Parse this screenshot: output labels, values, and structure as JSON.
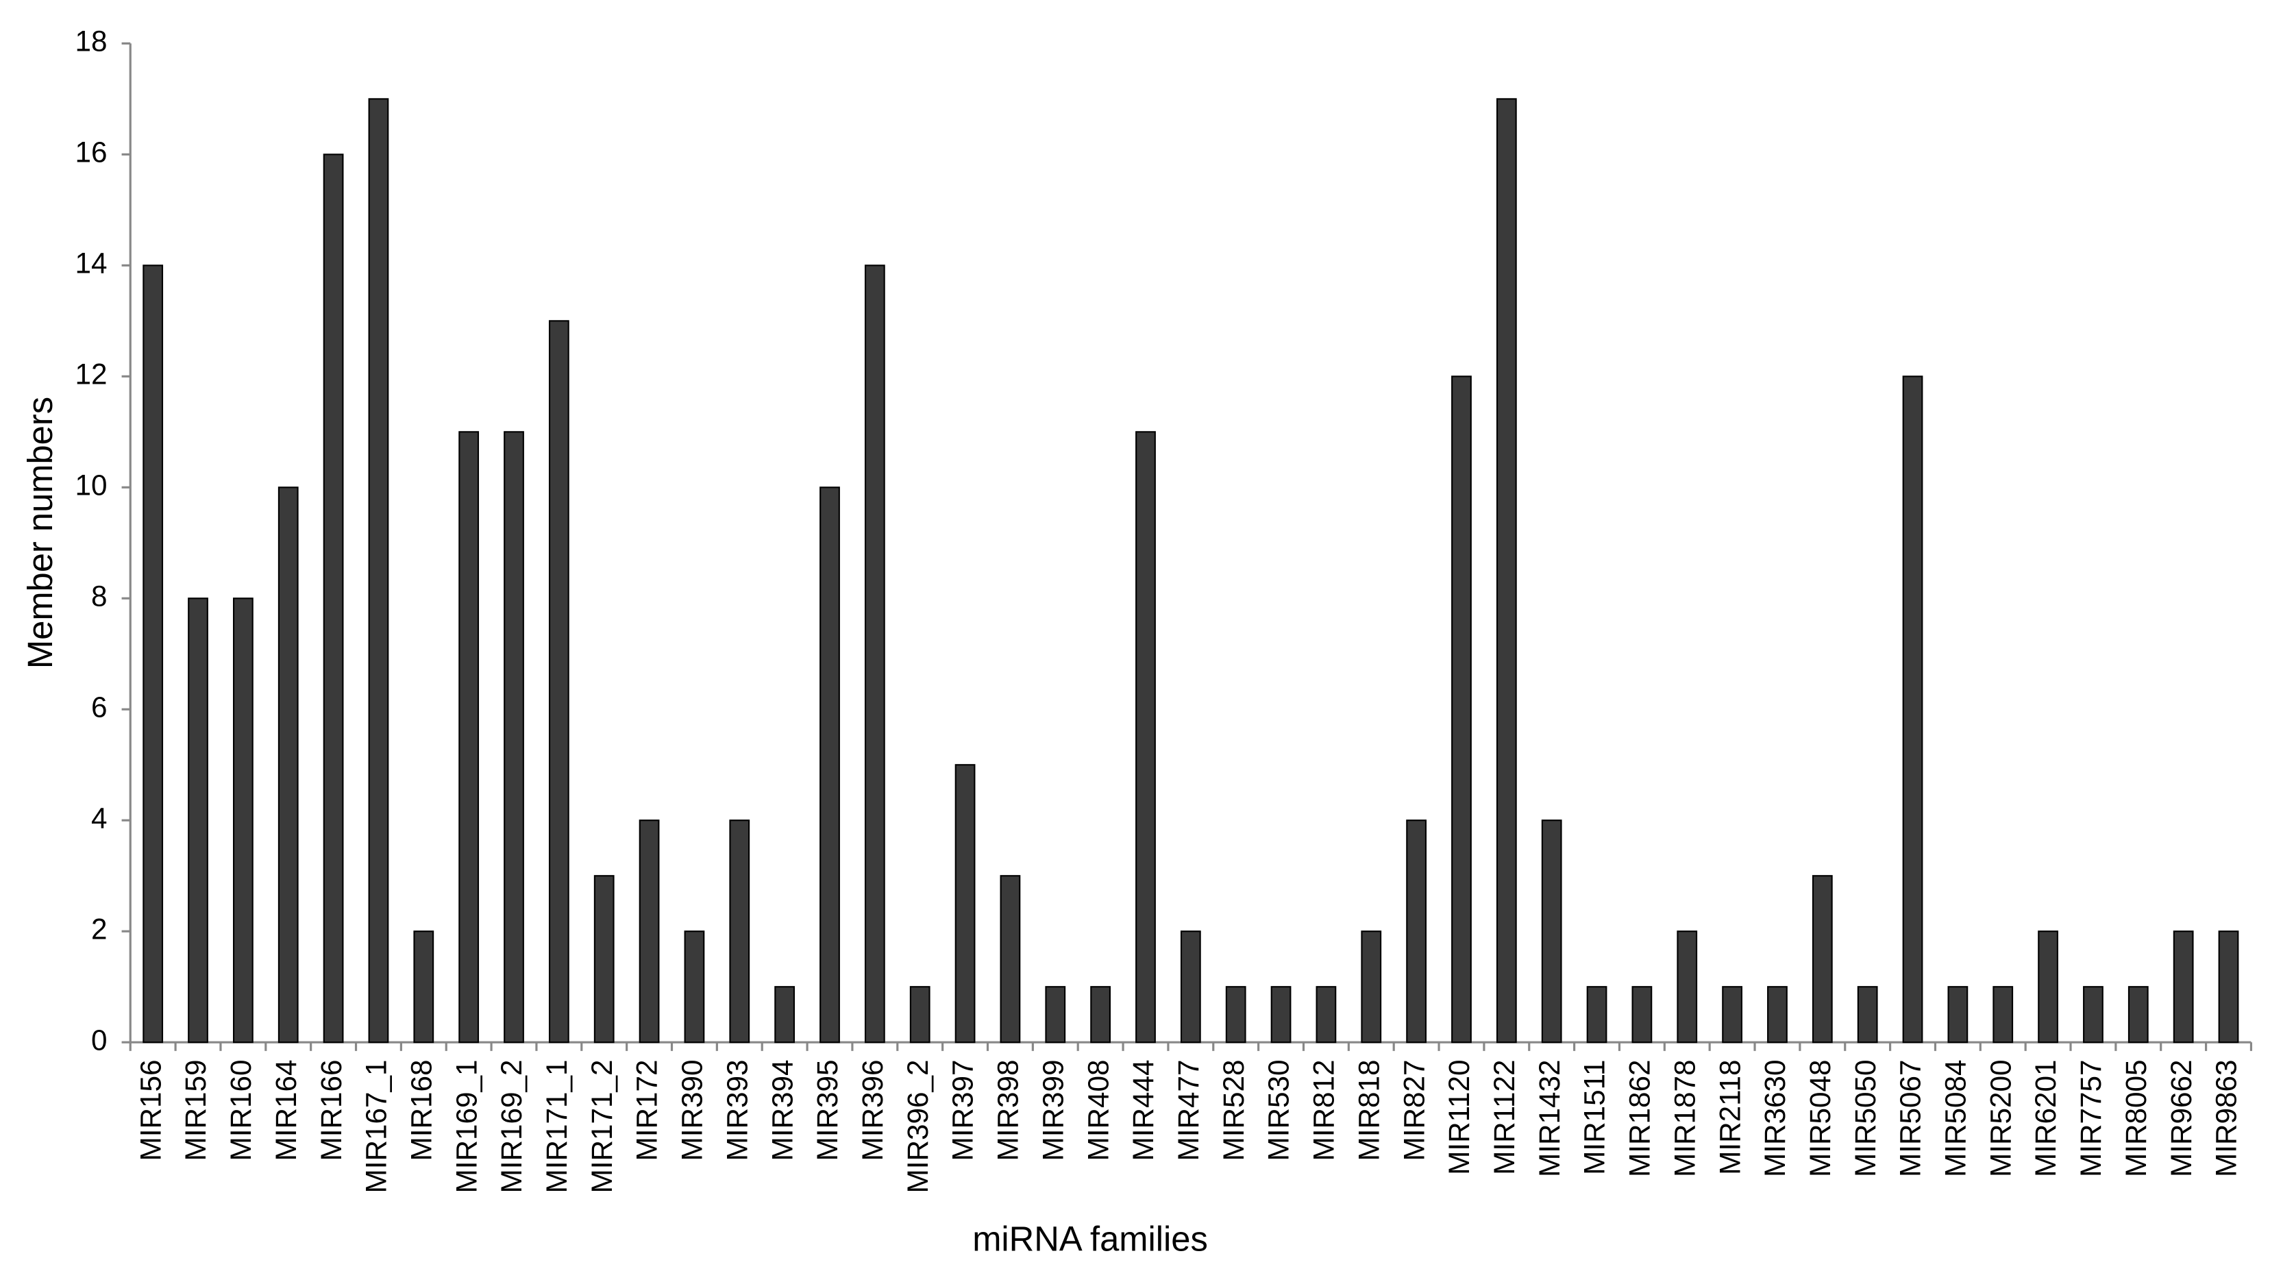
{
  "chart_data": {
    "type": "bar",
    "x_label": "miRNA families",
    "y_label": "Member numbers",
    "categories": [
      "MIR156",
      "MIR159",
      "MIR160",
      "MIR164",
      "MIR166",
      "MIR167_1",
      "MIR168",
      "MIR169_1",
      "MIR169_2",
      "MIR171_1",
      "MIR171_2",
      "MIR172",
      "MIR390",
      "MIR393",
      "MIR394",
      "MIR395",
      "MIR396",
      "MIR396_2",
      "MIR397",
      "MIR398",
      "MIR399",
      "MIR408",
      "MIR444",
      "MIR477",
      "MIR528",
      "MIR530",
      "MIR812",
      "MIR818",
      "MIR827",
      "MIR1120",
      "MIR1122",
      "MIR1432",
      "MIR1511",
      "MIR1862",
      "MIR1878",
      "MIR2118",
      "MIR3630",
      "MIR5048",
      "MIR5050",
      "MIR5067",
      "MIR5084",
      "MIR5200",
      "MIR6201",
      "MIR7757",
      "MIR8005",
      "MIR9662",
      "MIR9863"
    ],
    "values": [
      14,
      8,
      8,
      10,
      16,
      17,
      2,
      11,
      11,
      13,
      3,
      4,
      2,
      4,
      1,
      10,
      14,
      1,
      5,
      3,
      1,
      1,
      11,
      2,
      1,
      1,
      1,
      2,
      4,
      12,
      17,
      4,
      1,
      1,
      2,
      1,
      1,
      3,
      1,
      12,
      1,
      1,
      2,
      1,
      1,
      2,
      2
    ],
    "color": "#3a3a3a",
    "ylim": [
      0,
      18
    ],
    "yticks": [
      0,
      2,
      4,
      6,
      8,
      10,
      12,
      14,
      16,
      18
    ],
    "grid": false
  }
}
